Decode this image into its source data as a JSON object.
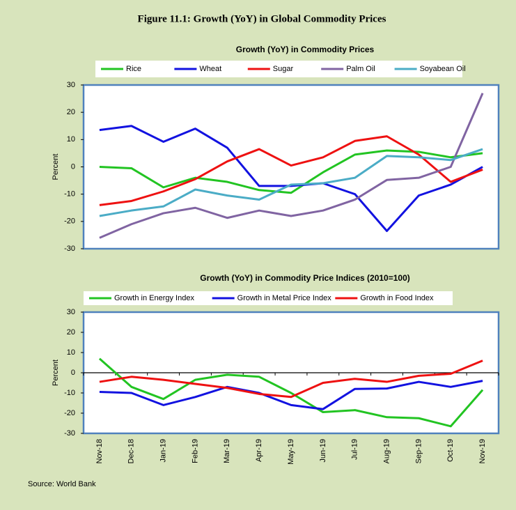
{
  "title": "Figure 11.1: Growth (YoY) in Global Commodity Prices",
  "source": "Source: World Bank",
  "chart_data": [
    {
      "type": "line",
      "title": "Growth (YoY) in Commodity Prices",
      "ylabel": "Percent",
      "ylim": [
        -30,
        30
      ],
      "yticks": [
        30,
        20,
        10,
        0,
        -10,
        -20,
        -30
      ],
      "grid": false,
      "zero_line": false,
      "series": [
        {
          "name": "Rice",
          "color": "#22c422",
          "values": [
            0,
            -0.5,
            -7.5,
            -4,
            -5.5,
            -8.5,
            -9.5,
            -2,
            4.5,
            6,
            5.5,
            3.5,
            5
          ]
        },
        {
          "name": "Wheat",
          "color": "#1212e0",
          "values": [
            13.5,
            15,
            9.2,
            14,
            7,
            -7,
            -7,
            -6,
            -10,
            -23.5,
            -10.5,
            -6.5,
            0
          ]
        },
        {
          "name": "Sugar",
          "color": "#ee1111",
          "values": [
            -14,
            -12.5,
            -9,
            -4.5,
            2,
            6.5,
            0.5,
            3.5,
            9.5,
            11.2,
            4.5,
            -5.5,
            -1
          ]
        },
        {
          "name": "Palm Oil",
          "color": "#8064a2",
          "values": [
            -26,
            -21,
            -17,
            -15,
            -18.7,
            -16,
            -18,
            -16,
            -12,
            -4.8,
            -4,
            0,
            27
          ]
        },
        {
          "name": "Soyabean Oil",
          "color": "#4bacc6",
          "values": [
            -18,
            -16,
            -14.5,
            -8.3,
            -10.5,
            -12,
            -6.5,
            -6,
            -4,
            4,
            3.5,
            2.5,
            6.5
          ]
        }
      ]
    },
    {
      "type": "line",
      "title": "Growth (YoY) in Commodity Price Indices (2010=100)",
      "ylabel": "Percent",
      "categories": [
        "Nov-18",
        "Dec-18",
        "Jan-19",
        "Feb-19",
        "Mar-19",
        "Apr-19",
        "May-19",
        "Jun-19",
        "Jul-19",
        "Aug-19",
        "Sep-19",
        "Oct-19",
        "Nov-19"
      ],
      "ylim": [
        -30,
        30
      ],
      "yticks": [
        30,
        20,
        10,
        0,
        -10,
        -20,
        -30
      ],
      "grid": false,
      "zero_line": true,
      "series": [
        {
          "name": "Growth in Energy Index",
          "color": "#22c422",
          "values": [
            7,
            -7,
            -13,
            -3.5,
            -1,
            -2,
            -10,
            -19.5,
            -18.5,
            -22,
            -22.5,
            -26.5,
            -8.5
          ]
        },
        {
          "name": "Growth in Metal Price Index",
          "color": "#1212e0",
          "values": [
            -9.5,
            -10,
            -16,
            -12,
            -7,
            -10,
            -16,
            -18,
            -8,
            -7.8,
            -4.5,
            -7,
            -4
          ]
        },
        {
          "name": "Growth in Food Index",
          "color": "#ee1111",
          "values": [
            -4.5,
            -2,
            -3.5,
            -5.5,
            -7.5,
            -10.5,
            -12,
            -5,
            -3,
            -4.5,
            -1.5,
            -0.5,
            6
          ]
        }
      ]
    }
  ]
}
